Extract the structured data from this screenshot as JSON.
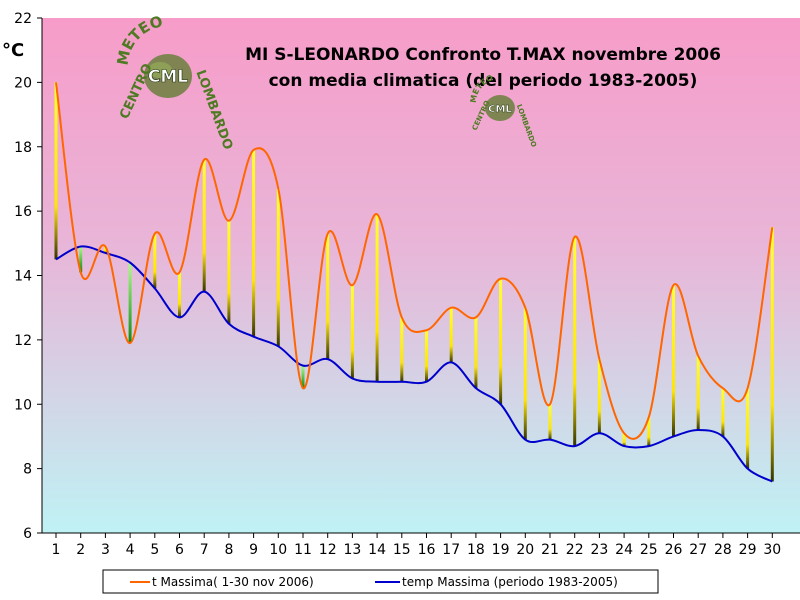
{
  "chart_data": {
    "type": "line",
    "title_line1": "MI S-LEONARDO Confronto T.MAX novembre 2006",
    "title_line2": "con media climatica (del periodo 1983-2005)",
    "ylabel": "°C",
    "xlabel": "",
    "ylim": [
      6,
      22
    ],
    "ytick_step": 2,
    "x": [
      1,
      2,
      3,
      4,
      5,
      6,
      7,
      8,
      9,
      10,
      11,
      12,
      13,
      14,
      15,
      16,
      17,
      18,
      19,
      20,
      21,
      22,
      23,
      24,
      25,
      26,
      27,
      28,
      29,
      30
    ],
    "series": [
      {
        "name": "t Massima( 1-30 nov 2006)",
        "color": "#ff6600",
        "values": [
          20.0,
          14.1,
          14.9,
          11.9,
          15.3,
          14.1,
          17.6,
          15.7,
          17.9,
          16.7,
          10.5,
          15.3,
          13.7,
          15.9,
          12.7,
          12.3,
          13.0,
          12.7,
          13.9,
          13.0,
          10.0,
          15.2,
          11.4,
          9.1,
          9.6,
          13.7,
          11.5,
          10.5,
          10.5,
          15.5
        ]
      },
      {
        "name": "temp Massima (periodo 1983-2005)",
        "color": "#0000cc",
        "values": [
          14.5,
          14.9,
          14.7,
          14.4,
          13.6,
          12.7,
          13.5,
          12.5,
          12.1,
          11.8,
          11.2,
          11.4,
          10.8,
          10.7,
          10.7,
          10.7,
          11.3,
          10.5,
          10.0,
          8.9,
          8.9,
          8.7,
          9.1,
          8.7,
          8.7,
          9.0,
          9.2,
          9.0,
          8.0,
          7.6
        ]
      }
    ],
    "grid": false,
    "legend_position": "bottom",
    "logo_large": {
      "top": "METEO",
      "center": "CML",
      "bottom": "CENTRO",
      "right": "LOMBARDO"
    },
    "logo_small": {
      "top": "METEO",
      "center": "CML",
      "bottom": "CENTRO",
      "right": "LOMBARDO"
    },
    "colors": {
      "background_top": "#f79cc9",
      "background_bottom": "#bff2f4",
      "warmer_bar": "#ffff33",
      "colder_bar": "#33cc33"
    }
  }
}
